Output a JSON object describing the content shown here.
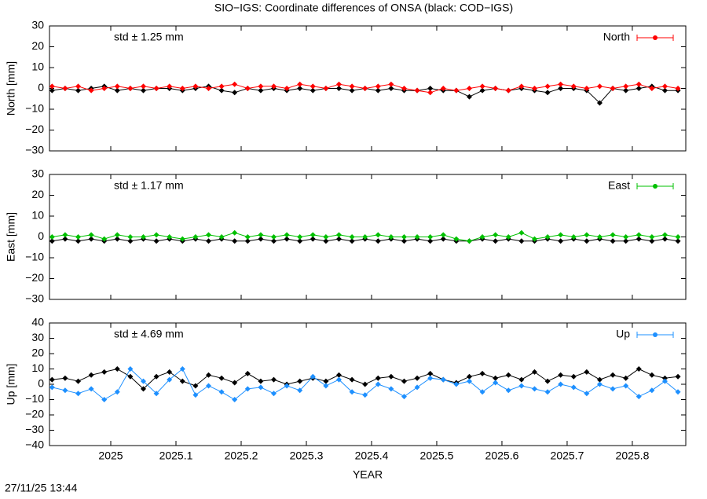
{
  "title": "SIO−IGS: Coordinate differences of ONSA (black: COD−IGS)",
  "timestamp": "27/11/25 13:44",
  "chart_data": [
    {
      "type": "line",
      "ylabel": "North [mm]",
      "annotation": "std ± 1.25 mm",
      "xlim": [
        2024.906,
        2025.882
      ],
      "xticks": [
        2025,
        2025.1,
        2025.2,
        2025.3,
        2025.4,
        2025.5,
        2025.6,
        2025.7,
        2025.8
      ],
      "ylim": [
        -30,
        30
      ],
      "yticks": [
        {
          "value": -30,
          "label": "−30"
        },
        {
          "value": -20,
          "label": "−20"
        },
        {
          "value": -10,
          "label": "−10"
        },
        0,
        10,
        20,
        30
      ],
      "x": [
        2024.91,
        2024.93,
        2024.95,
        2024.97,
        2024.99,
        2025.01,
        2025.03,
        2025.05,
        2025.07,
        2025.09,
        2025.11,
        2025.13,
        2025.15,
        2025.17,
        2025.19,
        2025.21,
        2025.23,
        2025.25,
        2025.27,
        2025.29,
        2025.31,
        2025.33,
        2025.35,
        2025.37,
        2025.39,
        2025.41,
        2025.43,
        2025.45,
        2025.47,
        2025.49,
        2025.51,
        2025.53,
        2025.55,
        2025.57,
        2025.59,
        2025.61,
        2025.63,
        2025.65,
        2025.67,
        2025.69,
        2025.71,
        2025.73,
        2025.75,
        2025.77,
        2025.79,
        2025.81,
        2025.83,
        2025.85,
        2025.87
      ],
      "series": [
        {
          "color": "#000000",
          "values": [
            -1,
            0,
            -1,
            0,
            1,
            -1,
            0,
            -1,
            0,
            0,
            -1,
            0,
            1,
            -1,
            -2,
            0,
            -1,
            0,
            -1,
            0,
            -1,
            0,
            0,
            -1,
            0,
            -1,
            0,
            -1,
            -1,
            0,
            -1,
            -1,
            -4,
            -1,
            0,
            -1,
            0,
            -1,
            -2,
            0,
            0,
            -1,
            -7,
            0,
            -1,
            0,
            1,
            -1,
            -1
          ]
        },
        {
          "name": "North",
          "color": "#ff0000",
          "values": [
            1,
            0,
            1,
            -1,
            0,
            1,
            0,
            1,
            0,
            1,
            0,
            1,
            0,
            1,
            2,
            0,
            1,
            1,
            0,
            2,
            1,
            0,
            2,
            1,
            0,
            1,
            2,
            0,
            -1,
            -2,
            0,
            -1,
            0,
            1,
            0,
            -1,
            1,
            0,
            1,
            2,
            1,
            0,
            1,
            0,
            1,
            2,
            0,
            1,
            0
          ]
        }
      ]
    },
    {
      "type": "line",
      "ylabel": "East [mm]",
      "annotation": "std ± 1.17 mm",
      "xlim": [
        2024.906,
        2025.882
      ],
      "xticks": [
        2025,
        2025.1,
        2025.2,
        2025.3,
        2025.4,
        2025.5,
        2025.6,
        2025.7,
        2025.8
      ],
      "ylim": [
        -30,
        30
      ],
      "yticks": [
        {
          "value": -30,
          "label": "−30"
        },
        {
          "value": -20,
          "label": "−20"
        },
        {
          "value": -10,
          "label": "−10"
        },
        0,
        10,
        20,
        30
      ],
      "x": [
        2024.91,
        2024.93,
        2024.95,
        2024.97,
        2024.99,
        2025.01,
        2025.03,
        2025.05,
        2025.07,
        2025.09,
        2025.11,
        2025.13,
        2025.15,
        2025.17,
        2025.19,
        2025.21,
        2025.23,
        2025.25,
        2025.27,
        2025.29,
        2025.31,
        2025.33,
        2025.35,
        2025.37,
        2025.39,
        2025.41,
        2025.43,
        2025.45,
        2025.47,
        2025.49,
        2025.51,
        2025.53,
        2025.55,
        2025.57,
        2025.59,
        2025.61,
        2025.63,
        2025.65,
        2025.67,
        2025.69,
        2025.71,
        2025.73,
        2025.75,
        2025.77,
        2025.79,
        2025.81,
        2025.83,
        2025.85,
        2025.87
      ],
      "series": [
        {
          "color": "#000000",
          "values": [
            -2,
            -1,
            -2,
            -1,
            -2,
            -1,
            -2,
            -1,
            -2,
            -1,
            -2,
            -1,
            -2,
            -1,
            -2,
            -2,
            -1,
            -2,
            -1,
            -2,
            -1,
            -2,
            -1,
            -2,
            -1,
            -2,
            -1,
            -2,
            -1,
            -2,
            -1,
            -2,
            -2,
            -1,
            -2,
            -1,
            -2,
            -2,
            -1,
            -2,
            -1,
            -2,
            -1,
            -2,
            -2,
            -1,
            -2,
            -1,
            -2
          ]
        },
        {
          "name": "East",
          "color": "#00c000",
          "values": [
            0,
            1,
            0,
            1,
            -1,
            1,
            0,
            0,
            1,
            0,
            -1,
            0,
            1,
            0,
            2,
            0,
            1,
            0,
            1,
            0,
            1,
            0,
            1,
            0,
            0,
            1,
            0,
            0,
            0,
            0,
            1,
            -1,
            -2,
            0,
            1,
            0,
            2,
            -1,
            0,
            1,
            0,
            1,
            0,
            1,
            0,
            1,
            0,
            1,
            0
          ]
        }
      ]
    },
    {
      "type": "line",
      "ylabel": "Up [mm]",
      "annotation": "std ± 4.69 mm",
      "xlabel": "YEAR",
      "xlim": [
        2024.906,
        2025.882
      ],
      "xticks": [
        2025,
        2025.1,
        2025.2,
        2025.3,
        2025.4,
        2025.5,
        2025.6,
        2025.7,
        2025.8
      ],
      "ylim": [
        -40,
        40
      ],
      "yticks": [
        {
          "value": -40,
          "label": "−40"
        },
        {
          "value": -30,
          "label": "−30"
        },
        {
          "value": -20,
          "label": "−20"
        },
        {
          "value": -10,
          "label": "−10"
        },
        0,
        10,
        20,
        30,
        40
      ],
      "x": [
        2024.91,
        2024.93,
        2024.95,
        2024.97,
        2024.99,
        2025.01,
        2025.03,
        2025.05,
        2025.07,
        2025.09,
        2025.11,
        2025.13,
        2025.15,
        2025.17,
        2025.19,
        2025.21,
        2025.23,
        2025.25,
        2025.27,
        2025.29,
        2025.31,
        2025.33,
        2025.35,
        2025.37,
        2025.39,
        2025.41,
        2025.43,
        2025.45,
        2025.47,
        2025.49,
        2025.51,
        2025.53,
        2025.55,
        2025.57,
        2025.59,
        2025.61,
        2025.63,
        2025.65,
        2025.67,
        2025.69,
        2025.71,
        2025.73,
        2025.75,
        2025.77,
        2025.79,
        2025.81,
        2025.83,
        2025.85,
        2025.87
      ],
      "series": [
        {
          "color": "#000000",
          "values": [
            3,
            4,
            2,
            6,
            8,
            10,
            5,
            -3,
            5,
            8,
            2,
            -1,
            6,
            4,
            1,
            7,
            2,
            3,
            0,
            2,
            4,
            2,
            6,
            3,
            0,
            4,
            5,
            2,
            4,
            7,
            3,
            1,
            5,
            7,
            4,
            6,
            3,
            8,
            2,
            6,
            5,
            8,
            3,
            6,
            4,
            10,
            6,
            4,
            5
          ]
        },
        {
          "name": "Up",
          "color": "#1e90ff",
          "values": [
            -2,
            -4,
            -6,
            -3,
            -10,
            -5,
            10,
            2,
            -6,
            3,
            10,
            -7,
            -1,
            -5,
            -10,
            -3,
            -2,
            -6,
            -1,
            -4,
            5,
            -1,
            3,
            -5,
            -7,
            0,
            -3,
            -8,
            -2,
            4,
            3,
            0,
            2,
            -5,
            1,
            -4,
            -1,
            -3,
            -5,
            0,
            -2,
            -6,
            0,
            -3,
            -1,
            -8,
            -4,
            2,
            -5
          ]
        }
      ]
    }
  ]
}
